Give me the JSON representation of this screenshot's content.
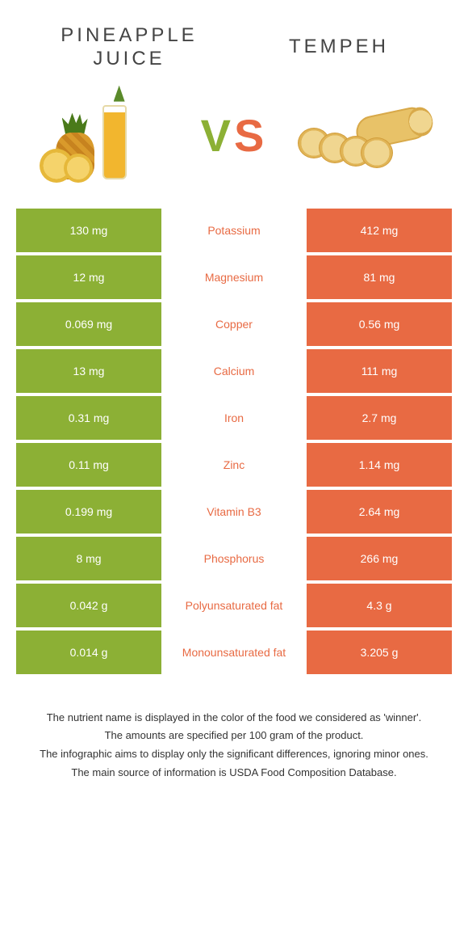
{
  "colors": {
    "left_bg": "#8cb035",
    "right_bg": "#e86a43",
    "left_text": "#ffffff",
    "right_text": "#ffffff",
    "mid_text_winner_left": "#8cb035",
    "mid_text_winner_right": "#e86a43"
  },
  "header": {
    "left_title_line1": "Pineapple",
    "left_title_line2": "juice",
    "right_title": "Tempeh",
    "vs_v": "V",
    "vs_s": "S"
  },
  "rows": [
    {
      "left": "130 mg",
      "label": "Potassium",
      "right": "412 mg",
      "winner": "right"
    },
    {
      "left": "12 mg",
      "label": "Magnesium",
      "right": "81 mg",
      "winner": "right"
    },
    {
      "left": "0.069 mg",
      "label": "Copper",
      "right": "0.56 mg",
      "winner": "right"
    },
    {
      "left": "13 mg",
      "label": "Calcium",
      "right": "111 mg",
      "winner": "right"
    },
    {
      "left": "0.31 mg",
      "label": "Iron",
      "right": "2.7 mg",
      "winner": "right"
    },
    {
      "left": "0.11 mg",
      "label": "Zinc",
      "right": "1.14 mg",
      "winner": "right"
    },
    {
      "left": "0.199 mg",
      "label": "Vitamin B3",
      "right": "2.64 mg",
      "winner": "right"
    },
    {
      "left": "8 mg",
      "label": "Phosphorus",
      "right": "266 mg",
      "winner": "right"
    },
    {
      "left": "0.042 g",
      "label": "Polyunsaturated fat",
      "right": "4.3 g",
      "winner": "right"
    },
    {
      "left": "0.014 g",
      "label": "Monounsaturated fat",
      "right": "3.205 g",
      "winner": "right"
    }
  ],
  "footnotes": [
    "The nutrient name is displayed in the color of the food we considered as 'winner'.",
    "The amounts are specified per 100 gram of the product.",
    "The infographic aims to display only the significant differences, ignoring minor ones.",
    "The main source of information is USDA Food Composition Database."
  ]
}
